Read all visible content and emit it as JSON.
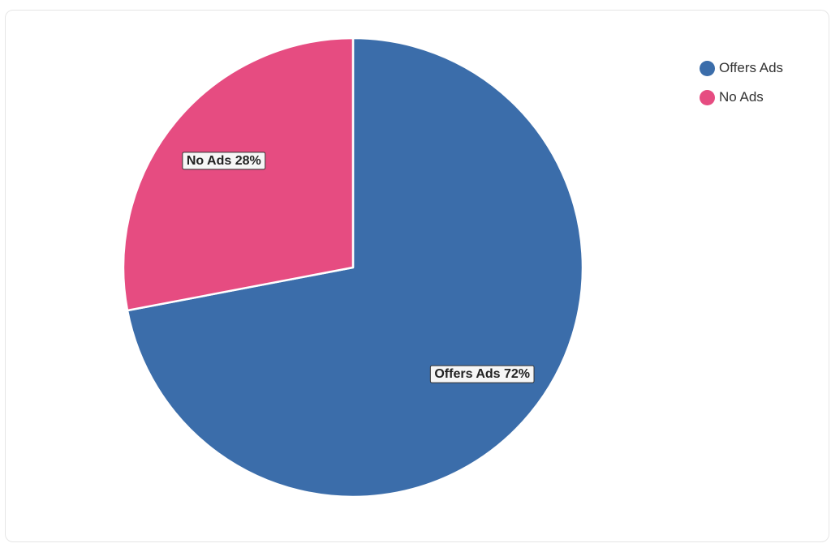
{
  "chart_data": {
    "type": "pie",
    "title": "",
    "categories": [
      "Offers Ads",
      "No Ads"
    ],
    "values": [
      72,
      28
    ],
    "unit": "%",
    "colors": [
      "#3b6daa",
      "#e64c81"
    ],
    "legend": {
      "position": "top-right",
      "items": [
        "Offers Ads",
        "No Ads"
      ]
    },
    "data_labels": [
      "Offers Ads 72%",
      "No Ads 28%"
    ]
  }
}
